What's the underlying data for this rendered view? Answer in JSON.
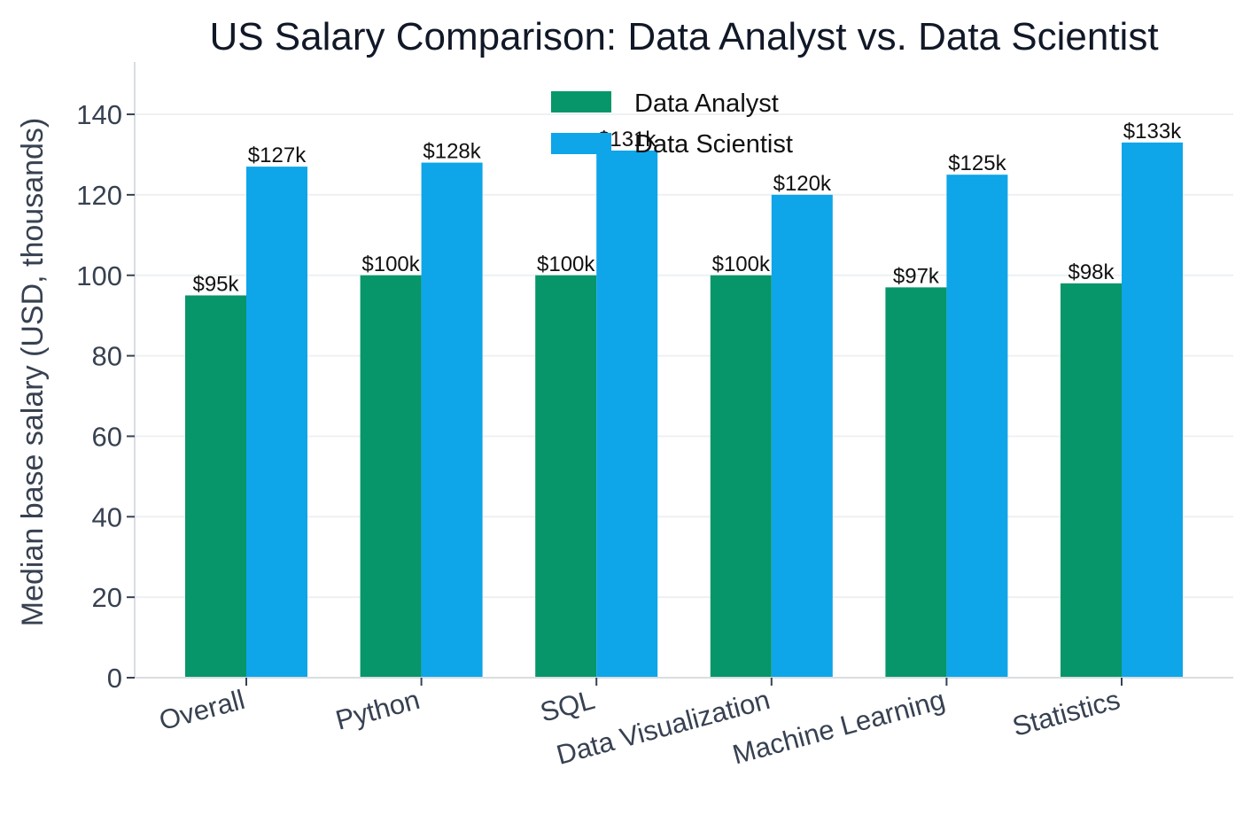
{
  "chart_data": {
    "type": "bar",
    "title": "US Salary Comparison: Data Analyst vs. Data Scientist",
    "xlabel": "",
    "ylabel": "Median base salary (USD, thousands)",
    "categories": [
      "Overall",
      "Python",
      "SQL",
      "Data Visualization",
      "Machine Learning",
      "Statistics"
    ],
    "series": [
      {
        "name": "Data Analyst",
        "color": "#069669",
        "values": [
          95,
          100,
          100,
          100,
          97,
          98
        ],
        "labels": [
          "$95k",
          "$100k",
          "$100k",
          "$100k",
          "$97k",
          "$98k"
        ]
      },
      {
        "name": "Data Scientist",
        "color": "#0ea5e9",
        "values": [
          127,
          128,
          131,
          120,
          125,
          133
        ],
        "labels": [
          "$127k",
          "$128k",
          "$131k",
          "$120k",
          "$125k",
          "$133k"
        ]
      }
    ],
    "ylim": [
      0,
      153
    ],
    "yticks": [
      0,
      20,
      40,
      60,
      80,
      100,
      120,
      140
    ],
    "grid": true,
    "legend_position": "top-center"
  }
}
